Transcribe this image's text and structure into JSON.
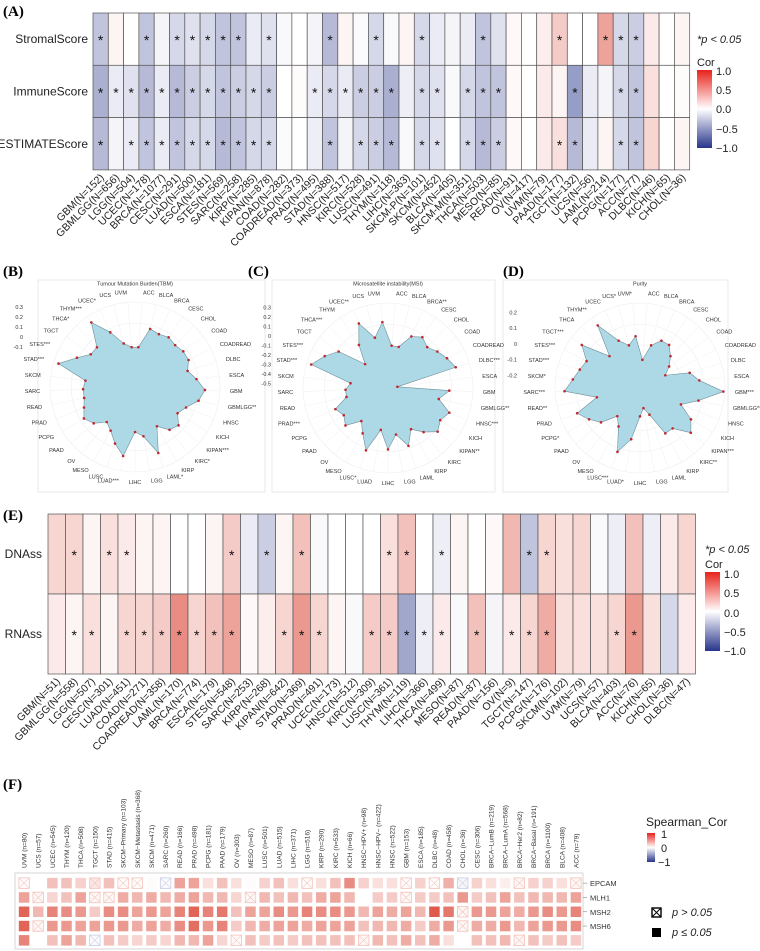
{
  "colors": {
    "positive": "#d7301f",
    "negative": "#2d3a8c",
    "zero": "#ffffff",
    "radar_fill": "#add8e6",
    "radar_point": "#c0282f"
  },
  "panel_labels": {
    "a": "(A)",
    "b": "(B)",
    "c": "(C)",
    "d": "(D)",
    "e": "(E)",
    "f": "(F)"
  },
  "legend_a": {
    "sig": "*p < 0.05",
    "title": "Cor",
    "ticks": [
      "1.0",
      "0.5",
      "0.0",
      "−0.5",
      "−1.0"
    ]
  },
  "legend_e": {
    "sig": "*p < 0.05",
    "title": "Cor",
    "ticks": [
      "1.0",
      "0.5",
      "0.0",
      "−0.5",
      "−1.0"
    ]
  },
  "legend_f": {
    "title": "Spearman_Cor",
    "ticks": [
      "1",
      "0",
      "−1"
    ],
    "ns_label": "p > 0.05",
    "sig_label": "p ≤ 0.05"
  },
  "chart_data": [
    {
      "type": "heatmap",
      "panel": "A",
      "rows": [
        "StromalScore",
        "ImmuneScore",
        "ESTIMATEScore"
      ],
      "columns": [
        "GBM(N=152)",
        "GBMLGG(N=656)",
        "LGG(N=504)",
        "UCEC(N=178)",
        "BRCA(N=1077)",
        "CESC(N=291)",
        "LUAD(N=500)",
        "ESCA(N=181)",
        "STES(N=569)",
        "SARC(N=258)",
        "KIRP(N=285)",
        "KIPAN(N=878)",
        "COAD(N=282)",
        "COADREAD(N=373)",
        "PRAD(N=495)",
        "STAD(N=388)",
        "HNSC(N=517)",
        "KIRC(N=528)",
        "LUSC(N=491)",
        "THYM(N=118)",
        "LIHC(N=363)",
        "SKCM-P(N=101)",
        "SKCM(N=452)",
        "BLCA(N=405)",
        "SKCM-M(N=351)",
        "THCA(N=503)",
        "MESO(N=85)",
        "READ(N=91)",
        "OV(N=417)",
        "UVM(N=79)",
        "PAAD(N=177)",
        "TGCT(N=132)",
        "UCS(N=56)",
        "LAML(N=214)",
        "PCPG(N=177)",
        "ACC(N=77)",
        "DLBC(N=46)",
        "KICH(N=65)",
        "CHOL(N=36)"
      ],
      "values": [
        [
          -0.3,
          0.05,
          0,
          -0.3,
          -0.05,
          -0.2,
          -0.15,
          -0.2,
          -0.3,
          -0.3,
          -0.1,
          -0.15,
          -0.03,
          0,
          -0.05,
          -0.35,
          0.05,
          -0.02,
          -0.2,
          -0.03,
          0.05,
          -0.2,
          -0.1,
          -0.05,
          -0.1,
          -0.3,
          -0.15,
          0.03,
          0,
          0.08,
          0.25,
          0,
          0,
          0.45,
          -0.2,
          -0.25,
          0.1,
          0,
          0.05
        ],
        [
          -0.4,
          -0.1,
          -0.15,
          -0.35,
          -0.1,
          -0.35,
          -0.25,
          -0.2,
          -0.3,
          -0.25,
          -0.2,
          -0.25,
          0,
          0.02,
          -0.1,
          -0.2,
          -0.1,
          -0.25,
          -0.25,
          -0.4,
          -0.08,
          -0.2,
          -0.15,
          -0.03,
          -0.2,
          -0.3,
          -0.3,
          0.03,
          0,
          0.1,
          0.05,
          -0.5,
          -0.1,
          -0.05,
          -0.2,
          -0.3,
          0.15,
          0,
          0.02
        ],
        [
          -0.35,
          -0.05,
          -0.1,
          -0.3,
          -0.1,
          -0.3,
          -0.2,
          -0.2,
          -0.35,
          -0.3,
          -0.2,
          -0.2,
          -0.02,
          0,
          -0.08,
          -0.3,
          -0.05,
          -0.2,
          -0.25,
          -0.35,
          -0.03,
          -0.2,
          -0.15,
          0,
          -0.2,
          -0.35,
          -0.25,
          0.03,
          0,
          0.1,
          0.15,
          -0.35,
          -0.1,
          0.05,
          -0.2,
          -0.3,
          0.2,
          0,
          0.05
        ]
      ],
      "significant": [
        [
          0,
          3,
          5,
          6,
          7,
          8,
          9,
          11,
          15,
          18,
          21,
          25,
          30,
          33,
          34,
          35
        ],
        [
          0,
          1,
          2,
          3,
          4,
          5,
          6,
          7,
          8,
          9,
          10,
          11,
          14,
          15,
          16,
          17,
          18,
          19,
          21,
          22,
          24,
          25,
          26,
          31,
          34,
          35
        ],
        [
          0,
          2,
          3,
          4,
          5,
          6,
          7,
          8,
          9,
          10,
          11,
          15,
          17,
          18,
          19,
          21,
          22,
          24,
          25,
          26,
          30,
          31,
          34,
          35
        ]
      ],
      "color_range": [
        -1,
        1
      ]
    },
    {
      "type": "radar",
      "panel": "B",
      "title": "Tumour Mutation Burden(TBM)",
      "ticks": [
        "0.3",
        "0.2",
        "0.1",
        "0",
        "-0.1"
      ],
      "range": [
        -0.5,
        0.35
      ],
      "labels": [
        "ACC",
        "BLCA",
        "BRCA",
        "CESC",
        "CHOL",
        "COAD",
        "COADREAD",
        "DLBC",
        "ESCA",
        "GBM",
        "GBMLGG**",
        "HNSC",
        "KICH",
        "KIPAN***",
        "KIRC*",
        "KIRP",
        "LAML*",
        "LGG",
        "LIHC",
        "LUAD***",
        "LUSC",
        "MESO",
        "OV",
        "PAAD",
        "PCPG",
        "PRAD",
        "READ",
        "SARC",
        "SKCM",
        "STAD***",
        "STES***",
        "TGCT",
        "THCA*",
        "THYM***",
        "UCEC*",
        "UCS",
        "UVM"
      ],
      "values": [
        -0.1,
        0.1,
        0.08,
        0.1,
        0.08,
        0.1,
        0.1,
        0.05,
        0.12,
        0.2,
        0.15,
        0.05,
        0,
        0.08,
        0.05,
        -0.05,
        0.2,
        0,
        -0.05,
        0.2,
        0.1,
        0,
        -0.05,
        0.05,
        0.1,
        0.05,
        0.02,
        0.02,
        0,
        0.3,
        0.15,
        0.05,
        0.05,
        0.28,
        0.1,
        -0.05,
        -0.1
      ]
    },
    {
      "type": "radar",
      "panel": "C",
      "title": "Microsatellite instability(MSI)",
      "ticks": [
        "0.3",
        "0.2",
        "0.1",
        "0",
        "-0.1",
        "-0.2",
        "-0.3",
        "-0.4",
        "-0.5"
      ],
      "range": [
        -0.55,
        0.35
      ],
      "labels": [
        "ACC",
        "BLCA",
        "BRCA**",
        "CESC",
        "CHOL",
        "COAD",
        "COADREAD",
        "DLBC***",
        "ESCA",
        "GBM",
        "GBMLGG**",
        "HNSC***",
        "KICH",
        "KIPAN**",
        "KIRC",
        "KIRP",
        "LAML",
        "LGG",
        "LIHC",
        "LUAD",
        "LUSC*",
        "MESO",
        "OV",
        "PAAD",
        "PCPG",
        "PRAD***",
        "READ",
        "SARC",
        "SKCM",
        "STAD***",
        "STES***",
        "TGCT",
        "THCA***",
        "THYM",
        "UCEC**",
        "UCS",
        "UVM"
      ],
      "values": [
        -0.1,
        -0.1,
        0.05,
        0.1,
        0.05,
        0.1,
        0.15,
        0.2,
        -0.45,
        0.1,
        0,
        0.15,
        0.1,
        0.15,
        0.05,
        -0.05,
        0.1,
        -0.05,
        0.1,
        -0.1,
        0.15,
        0,
        -0.1,
        0.05,
        0,
        0.05,
        -0.1,
        -0.1,
        -0.15,
        0.3,
        0.2,
        0.1,
        -0.2,
        0,
        0.2,
        0,
        0.15
      ]
    },
    {
      "type": "radar",
      "panel": "D",
      "title": "Purity",
      "ticks": [
        "0.2",
        "0.1",
        "0",
        "-0.1",
        "-0.2"
      ],
      "range": [
        -0.28,
        0.26
      ],
      "labels": [
        "ACC",
        "BLCA",
        "BRCA",
        "CESC",
        "CHOL",
        "COAD",
        "COADREAD",
        "DLBC",
        "ESCA",
        "GBM***",
        "GBMLGG**",
        "HNSC",
        "KICH",
        "KIPAN***",
        "KIRC**",
        "KIRP",
        "LAML",
        "LGG",
        "LIHC",
        "LUAD*",
        "LUSC***",
        "MESO",
        "OV",
        "PAAD",
        "PCPG*",
        "PRAD",
        "READ**",
        "SARC***",
        "SKCM*",
        "STAD***",
        "STES***",
        "TGCT***",
        "THCA",
        "THYM**",
        "UCEC",
        "UCS*",
        "UVM*"
      ],
      "values": [
        -0.1,
        0,
        0.05,
        0.05,
        0,
        -0.05,
        -0.1,
        0.05,
        0.1,
        0.25,
        0.1,
        0,
        0.1,
        0.15,
        0.05,
        0.05,
        -0.1,
        -0.15,
        -0.1,
        0.05,
        0.15,
        0,
        -0.05,
        0.05,
        0.1,
        0.15,
        0,
        0.2,
        0.15,
        0.12,
        0.1,
        0.18,
        0,
        0.2,
        0.05,
        0,
        0.05
      ]
    },
    {
      "type": "heatmap",
      "panel": "E",
      "rows": [
        "DNAss",
        "RNAss"
      ],
      "columns": [
        "GBM(N=51)",
        "GBMLGG(N=558)",
        "LGG(N=507)",
        "CESC(N=301)",
        "LUAD(N=451)",
        "COAD(N=271)",
        "COADREAD(N=358)",
        "LAML(N=170)",
        "BRCA(N=774)",
        "ESCA(N=179)",
        "STES(N=548)",
        "SARC(N=253)",
        "KIRP(N=268)",
        "KIPAN(N=642)",
        "STAD(N=369)",
        "PRAD(N=491)",
        "UCEC(N=173)",
        "HNSC(N=512)",
        "KIRC(N=309)",
        "LUSC(N=361)",
        "THYM(N=119)",
        "LIHC(N=366)",
        "THCA(N=499)",
        "MESO(N=87)",
        "READ(N=87)",
        "PAAD(N=156)",
        "OV(N=9)",
        "TGCT(N=147)",
        "PCPG(N=176)",
        "SKCM(N=102)",
        "UVM(N=79)",
        "UCS(N=57)",
        "BLCA(N=403)",
        "ACC(N=76)",
        "KICH(N=65)",
        "CHOL(N=36)",
        "DLBC(N=47)"
      ],
      "values": [
        [
          0.2,
          0.2,
          0.05,
          0.15,
          0.1,
          0.05,
          0.05,
          0,
          0,
          0.05,
          0.25,
          -0.1,
          -0.25,
          0.05,
          0.3,
          -0.03,
          0,
          0,
          0,
          0.15,
          0.3,
          0,
          -0.08,
          0.05,
          0,
          0.03,
          0.35,
          -0.3,
          0.2,
          0.15,
          0.2,
          -0.03,
          -0.08,
          0.3,
          -0.08,
          0.1,
          0.2
        ],
        [
          0.1,
          0.05,
          0.15,
          0.05,
          0.2,
          0.2,
          0.25,
          0.55,
          0.2,
          0.3,
          0.45,
          0.03,
          0.08,
          0.2,
          0.5,
          0.2,
          0.05,
          -0.03,
          0.25,
          0.25,
          -0.45,
          -0.08,
          0.1,
          -0.03,
          0.3,
          -0.05,
          0.1,
          0.2,
          0.4,
          0.15,
          0.15,
          0.15,
          0.2,
          0.5,
          0.15,
          -0.2,
          0.1
        ]
      ],
      "significant": [
        [
          1,
          3,
          4,
          10,
          12,
          14,
          19,
          20,
          22,
          27,
          28
        ],
        [
          1,
          2,
          4,
          5,
          6,
          7,
          8,
          9,
          10,
          13,
          14,
          15,
          18,
          19,
          20,
          21,
          22,
          24,
          26,
          27,
          28,
          32,
          33
        ]
      ],
      "color_range": [
        -1,
        1
      ]
    },
    {
      "type": "heatmap",
      "panel": "F",
      "rows": [
        "EPCAM",
        "MLH1",
        "MSH2",
        "MSH6",
        ""
      ],
      "columns": [
        "UVM (n=80)",
        "UCS (n=57)",
        "UCEC (n=545)",
        "THYM (n=120)",
        "THCA (n=508)",
        "TGCT (n=150)",
        "STAD (n=415)",
        "SKCM−Primary (n=103)",
        "SKCM−Metastasis (n=368)",
        "SKCM (n=471)",
        "SARC (n=260)",
        "READ (n=166)",
        "PRAD (n=498)",
        "PCPG (n=181)",
        "PAAD (n=179)",
        "OV (n=303)",
        "MESO (n=87)",
        "LUSC (n=501)",
        "LUAD (n=515)",
        "LIHC (n=371)",
        "LGG (n=516)",
        "KIRP (n=290)",
        "KIRC (n=533)",
        "KICH (n=66)",
        "HNSC−HPV+ (n=98)",
        "HNSC−HPV− (n=422)",
        "HNSC (n=522)",
        "GBM (n=153)",
        "ESCA (n=185)",
        "DLBC (n=48)",
        "COAD (n=458)",
        "CHOL (n=36)",
        "CESC (n=306)",
        "BRCA−LumB (n=219)",
        "BRCA−LumA (n=568)",
        "BRCA−Her2 (n=82)",
        "BRCA−Basal (n=191)",
        "BRCA (n=1100)",
        "BLCA (n=408)",
        "ACC (n=79)"
      ],
      "values": [
        [
          0.05,
          0,
          0.3,
          0.3,
          0.22,
          0.3,
          0.3,
          0.03,
          0.03,
          0.02,
          -0.05,
          0.45,
          0.45,
          0.15,
          0.3,
          0.15,
          0.02,
          0.22,
          0.3,
          0.15,
          0.05,
          0.15,
          0.3,
          0.55,
          0.22,
          0.15,
          0.15,
          0.05,
          0.22,
          0.03,
          0.38,
          -0.1,
          0.22,
          0.15,
          0.08,
          0.1,
          0.22,
          0.22,
          0.15,
          0.1
        ],
        [
          0.45,
          0.1,
          0.2,
          0.3,
          0.45,
          0.1,
          0.1,
          0.4,
          0.35,
          0.4,
          0.35,
          0.4,
          0.45,
          0.35,
          0.35,
          0.2,
          0.1,
          0.35,
          0.3,
          0.35,
          0.3,
          0.4,
          0.45,
          0.35,
          0,
          0.25,
          0.25,
          0.1,
          0.25,
          0.25,
          0.3,
          0.5,
          0.25,
          0.3,
          0.45,
          0.3,
          0.35,
          0.35,
          0.35,
          0.45
        ],
        [
          0.75,
          0.35,
          0.6,
          0.55,
          0.5,
          0.25,
          0.55,
          0.55,
          0.45,
          0.5,
          0.45,
          0.6,
          0.75,
          0.6,
          0.65,
          0.3,
          0.45,
          0.45,
          0.55,
          0.5,
          0.6,
          0.55,
          0.55,
          0.5,
          0.35,
          0.45,
          0.4,
          0.45,
          0.35,
          0.8,
          0.65,
          0.1,
          0.5,
          0.5,
          0.45,
          0.4,
          0.5,
          0.55,
          0.5,
          0.6
        ],
        [
          0.75,
          0.1,
          0.5,
          0.5,
          0.45,
          0.45,
          0.5,
          0.5,
          0.4,
          0.45,
          0.4,
          0.55,
          0.7,
          0.5,
          0.6,
          0.25,
          0.35,
          0.4,
          0.45,
          0.45,
          0.4,
          0.45,
          0.45,
          0.45,
          0.3,
          0.35,
          0.35,
          0.4,
          0.25,
          0.4,
          0.5,
          0.1,
          0.4,
          0.4,
          0.5,
          0.35,
          0.45,
          0.5,
          0.5,
          0.55
        ],
        [
          0.6,
          0,
          0.3,
          0.45,
          0.35,
          -0.05,
          0.3,
          0.25,
          0.2,
          0.25,
          0.2,
          0.35,
          0.35,
          0.45,
          0.2,
          0.05,
          0.3,
          0.25,
          0.3,
          0.25,
          0.3,
          0.3,
          0.3,
          0.3,
          0.1,
          0.35,
          0.3,
          0.4,
          0.3,
          0.4,
          0.15,
          0,
          0.3,
          0.3,
          0.35,
          0.1,
          0.3,
          0.25,
          0.3,
          0.25
        ]
      ],
      "not_significant": [
        [
          0,
          5,
          7,
          8,
          10,
          20,
          27,
          29,
          31,
          35,
          39
        ],
        [
          1,
          5,
          6,
          16,
          27
        ],
        [
          31
        ],
        [
          1,
          31
        ],
        [
          5,
          15,
          24,
          35
        ]
      ],
      "color_range": [
        -1,
        1
      ]
    }
  ]
}
